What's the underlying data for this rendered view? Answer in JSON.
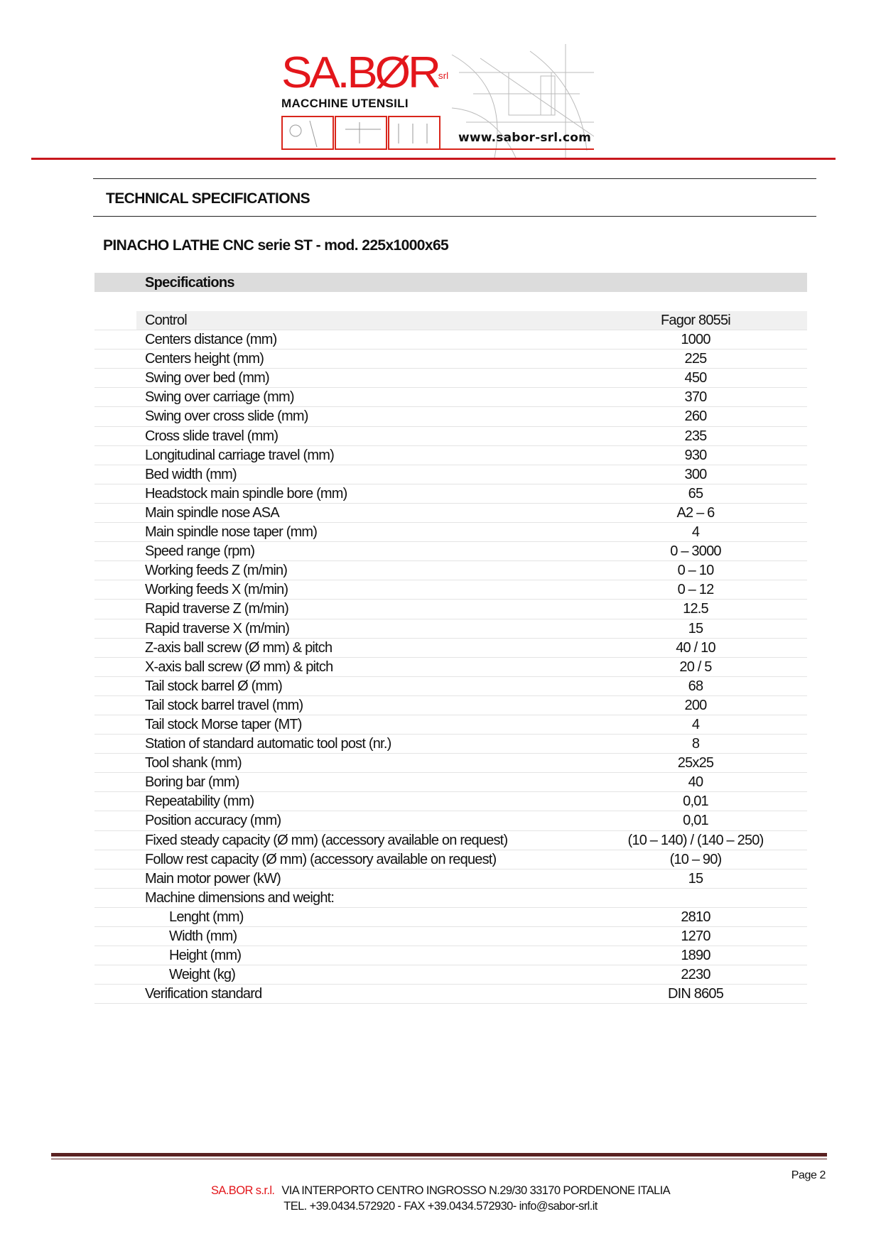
{
  "header": {
    "logo_text": "SA.BØR",
    "logo_suffix": "srl",
    "tagline": "MACCHINE UTENSILI",
    "website": "www.sabor-srl.com"
  },
  "section_title": "TECHNICAL SPECIFICATIONS",
  "product_title": "PINACHO LATHE CNC serie ST - mod. 225x1000x65",
  "table": {
    "header": "Specifications",
    "rows": [
      {
        "label": "Control",
        "value": "Fagor 8055i"
      },
      {
        "label": "Centers distance (mm)",
        "value": "1000"
      },
      {
        "label": "Centers height (mm)",
        "value": "225"
      },
      {
        "label": "Swing over bed (mm)",
        "value": "450"
      },
      {
        "label": "Swing over carriage (mm)",
        "value": "370"
      },
      {
        "label": "Swing over cross slide (mm)",
        "value": "260"
      },
      {
        "label": "Cross slide travel (mm)",
        "value": "235"
      },
      {
        "label": "Longitudinal carriage travel (mm)",
        "value": "930"
      },
      {
        "label": "Bed width (mm)",
        "value": "300"
      },
      {
        "label": "Headstock main spindle bore (mm)",
        "value": "65"
      },
      {
        "label": "Main spindle nose ASA",
        "value": "A2 – 6"
      },
      {
        "label": "Main spindle nose taper (mm)",
        "value": "4"
      },
      {
        "label": "Speed range (rpm)",
        "value": "0 – 3000"
      },
      {
        "label": "Working feeds Z (m/min)",
        "value": "0 – 10"
      },
      {
        "label": "Working feeds X (m/min)",
        "value": "0 – 12"
      },
      {
        "label": "Rapid traverse Z (m/min)",
        "value": "12.5"
      },
      {
        "label": "Rapid traverse X (m/min)",
        "value": "15"
      },
      {
        "label": "Z-axis ball screw (Ø mm) & pitch",
        "value": "40 / 10"
      },
      {
        "label": "X-axis ball screw (Ø mm) & pitch",
        "value": "20 / 5"
      },
      {
        "label": "Tail stock barrel Ø (mm)",
        "value": "68"
      },
      {
        "label": "Tail stock barrel travel (mm)",
        "value": "200"
      },
      {
        "label": "Tail stock Morse taper (MT)",
        "value": "4"
      },
      {
        "label": "Station of standard automatic tool post (nr.)",
        "value": "8"
      },
      {
        "label": "Tool shank (mm)",
        "value": "25x25"
      },
      {
        "label": "Boring bar (mm)",
        "value": "40"
      },
      {
        "label": "Repeatability (mm)",
        "value": "0,01"
      },
      {
        "label": "Position accuracy (mm)",
        "value": "0,01"
      },
      {
        "label": "Fixed steady capacity (Ø mm) (accessory available on request)",
        "value": "(10 – 140) / (140 – 250)"
      },
      {
        "label": "Follow rest capacity (Ø mm) (accessory available on request)",
        "value": "(10 – 90)"
      },
      {
        "label": "Main motor power (kW)",
        "value": "15"
      },
      {
        "label": "Machine dimensions and weight:",
        "value": ""
      },
      {
        "label": "Lenght (mm)",
        "value": "2810",
        "indent": true
      },
      {
        "label": "Width (mm)",
        "value": "1270",
        "indent": true
      },
      {
        "label": "Height (mm)",
        "value": "1890",
        "indent": true
      },
      {
        "label": "Weight (kg)",
        "value": "2230",
        "indent": true
      },
      {
        "label": "Verification standard",
        "value": "DIN 8605"
      }
    ]
  },
  "footer": {
    "page": "Page 2",
    "company": "SA.BOR s.r.l.",
    "address": "VIA INTERPORTO CENTRO INGROSSO N.29/30  33170 PORDENONE ITALIA",
    "contact": "TEL. +39.0434.572920 - FAX +39.0434.572930-  info@sabor-srl.it"
  },
  "colors": {
    "brand_red": "#e3161b",
    "header_band": "#dcdcdc",
    "footer_line": "#5a2222"
  }
}
